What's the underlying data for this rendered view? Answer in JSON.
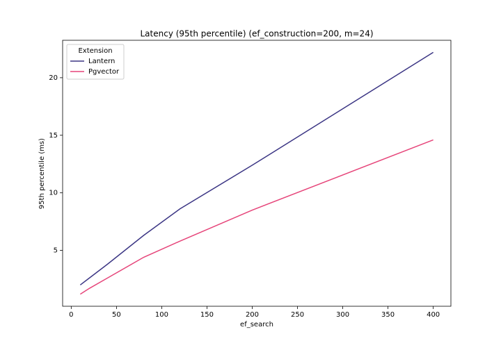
{
  "chart_data": {
    "type": "line",
    "title": "Latency (95th percentile) (ef_construction=200, m=24)",
    "x_label": "ef_search",
    "y_label": "95th percentile (ms)",
    "x": [
      10,
      20,
      40,
      80,
      120,
      200,
      400
    ],
    "series": [
      {
        "name": "Lantern",
        "color": "#3b3584",
        "values": [
          2.0,
          2.6,
          3.8,
          6.3,
          8.6,
          12.4,
          22.2
        ]
      },
      {
        "name": "Pgvector",
        "color": "#e6457a",
        "values": [
          1.2,
          1.7,
          2.6,
          4.4,
          5.8,
          8.5,
          14.6
        ]
      }
    ],
    "legend_title": "Extension",
    "legend": "upper left",
    "xlim": [
      -9.5,
      419.5
    ],
    "xticks": [
      0,
      50,
      100,
      150,
      200,
      250,
      300,
      350,
      400
    ],
    "ylim": [
      0.15,
      23.25
    ],
    "yticks": [
      5,
      10,
      15,
      20
    ]
  }
}
